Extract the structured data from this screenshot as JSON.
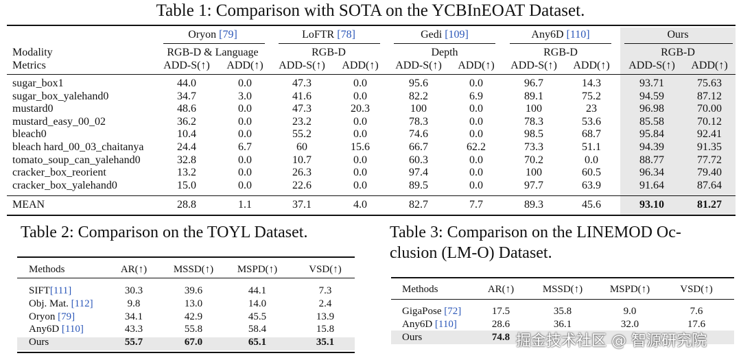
{
  "table1": {
    "caption": "Table 1:  Comparison with SOTA on the YCBInEOAT Dataset.",
    "row_label_modality": "Modality",
    "row_label_metrics": "Metrics",
    "methods": [
      {
        "name": "Oryon",
        "cite": "[79]",
        "modality": "RGB-D & Language"
      },
      {
        "name": "LoFTR",
        "cite": "[78]",
        "modality": "RGB-D"
      },
      {
        "name": "Gedi",
        "cite": "[109]",
        "modality": "Depth"
      },
      {
        "name": "Any6D",
        "cite": "[110]",
        "modality": "RGB-D"
      },
      {
        "name": "Ours",
        "cite": "",
        "modality": "RGB-D"
      }
    ],
    "metric_labels": [
      "ADD-S(↑)",
      "ADD(↑)"
    ],
    "rows": [
      {
        "name": "sugar_box1",
        "values": [
          "44.0",
          "0.0",
          "47.3",
          "0.0",
          "95.6",
          "0.0",
          "96.7",
          "14.3",
          "93.71",
          "75.63"
        ]
      },
      {
        "name": "sugar_box_yalehand0",
        "values": [
          "34.7",
          "3.0",
          "41.6",
          "0.0",
          "82.2",
          "6.9",
          "89.1",
          "75.2",
          "94.59",
          "87.12"
        ]
      },
      {
        "name": "mustard0",
        "values": [
          "48.6",
          "0.0",
          "47.3",
          "20.3",
          "100",
          "0.0",
          "100",
          "23",
          "96.98",
          "70.00"
        ]
      },
      {
        "name": "mustard_easy_00_02",
        "values": [
          "36.2",
          "0.0",
          "23.2",
          "0.0",
          "78.3",
          "0.0",
          "78.3",
          "53.6",
          "85.58",
          "70.12"
        ]
      },
      {
        "name": "bleach0",
        "values": [
          "10.4",
          "0.0",
          "55.2",
          "0.0",
          "74.6",
          "0.0",
          "98.5",
          "68.7",
          "95.84",
          "92.41"
        ]
      },
      {
        "name": "bleach hard_00_03_chaitanya",
        "values": [
          "24.4",
          "6.7",
          "60",
          "15.6",
          "66.7",
          "62.2",
          "73.3",
          "51.1",
          "94.39",
          "91.35"
        ]
      },
      {
        "name": "tomato_soup_can_yalehand0",
        "values": [
          "32.8",
          "0.0",
          "10.7",
          "0.0",
          "60.3",
          "0.0",
          "70.2",
          "0.0",
          "88.77",
          "77.72"
        ]
      },
      {
        "name": "cracker_box_reorient",
        "values": [
          "13.2",
          "0.0",
          "26.3",
          "0.0",
          "97.4",
          "0.0",
          "100",
          "60.5",
          "96.34",
          "79.40"
        ]
      },
      {
        "name": "cracker_box_yalehand0",
        "values": [
          "15.0",
          "0.0",
          "22.6",
          "0.0",
          "89.5",
          "0.0",
          "97.7",
          "63.9",
          "91.64",
          "87.64"
        ]
      }
    ],
    "mean": {
      "name": "MEAN",
      "values": [
        "28.8",
        "1.1",
        "37.1",
        "4.0",
        "82.7",
        "7.7",
        "89.3",
        "45.6",
        "93.10",
        "81.27"
      ]
    }
  },
  "table2": {
    "caption_line1": "Table 2: Comparison on the TOYL Dataset.",
    "headers": [
      "Methods",
      "AR(↑)",
      "MSSD(↑)",
      "MSPD(↑)",
      "VSD(↑)"
    ],
    "rows": [
      {
        "method": "SIFT",
        "cite": "[111]",
        "values": [
          "30.3",
          "39.6",
          "44.1",
          "7.3"
        ]
      },
      {
        "method": "Obj. Mat. ",
        "cite": "[112]",
        "values": [
          "9.8",
          "13.0",
          "14.0",
          "2.4"
        ]
      },
      {
        "method": "Oryon ",
        "cite": "[79]",
        "values": [
          "34.1",
          "42.9",
          "45.5",
          "13.9"
        ]
      },
      {
        "method": "Any6D ",
        "cite": "[110]",
        "values": [
          "43.3",
          "55.8",
          "58.4",
          "15.8"
        ]
      },
      {
        "method": "Ours",
        "cite": "",
        "values": [
          "55.7",
          "67.0",
          "65.1",
          "35.1"
        ]
      }
    ]
  },
  "table3": {
    "caption_line1": "Table 3: Comparison on the LINEMOD Oc-",
    "caption_line2": "clusion (LM-O) Dataset.",
    "headers": [
      "Methods",
      "AR(↑)",
      "MSSD(↑)",
      "MSPD(↑)",
      "VSD(↑)"
    ],
    "rows": [
      {
        "method": "GigaPose ",
        "cite": "[72]",
        "values": [
          "17.5",
          "35.8",
          "9.0",
          "7.6"
        ]
      },
      {
        "method": "Any6D ",
        "cite": "[110]",
        "values": [
          "28.6",
          "36.1",
          "32.0",
          "17.6"
        ]
      },
      {
        "method": "Ours",
        "cite": "",
        "values": [
          "74.8",
          "",
          "",
          ""
        ]
      }
    ]
  },
  "watermark": "掘金技术社区 @ 智源研究院"
}
